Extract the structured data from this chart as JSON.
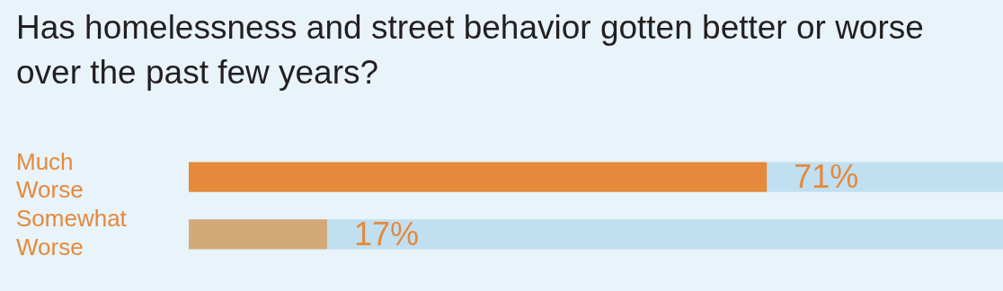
{
  "chart_data": {
    "type": "bar",
    "orientation": "horizontal",
    "stacked": true,
    "title": "Has homelessness and street behavior gotten better or worse over the past few years?",
    "categories": [
      "Much Worse",
      "Somewhat Worse"
    ],
    "xlim": [
      0,
      100
    ],
    "series": [
      {
        "colors": [
          "#e5893b",
          "#d4a97a"
        ],
        "values": [
          71,
          17
        ],
        "value_labels": [
          "71%",
          "17%"
        ]
      },
      {
        "color": "#c0e0f2",
        "values": [
          29,
          83
        ]
      }
    ],
    "legend": false
  }
}
